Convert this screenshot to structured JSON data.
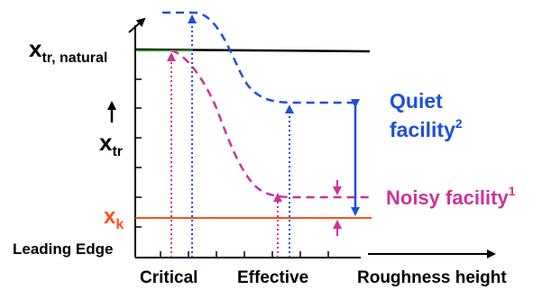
{
  "y_labels": {
    "x_tr_natural_main": "x",
    "x_tr_natural_sub": "tr, natural",
    "x_tr_main": "x",
    "x_tr_sub": "tr",
    "x_k_main": "x",
    "x_k_sub": "k",
    "leading_edge": "Leading Edge"
  },
  "x_labels": {
    "critical": "Critical",
    "effective": "Effective",
    "roughness_height": "Roughness height"
  },
  "series": {
    "quiet": {
      "label": "Quiet",
      "label2": "facility",
      "superscript": "2",
      "color": "#1f4fd8"
    },
    "noisy": {
      "label": "Noisy facility",
      "superscript": "1",
      "color": "#cc3399"
    }
  },
  "colors": {
    "natural_line": "#000000",
    "xk_line": "#ff4d1a",
    "xk_label": "#ff4d1a",
    "axis": "#000000"
  }
}
